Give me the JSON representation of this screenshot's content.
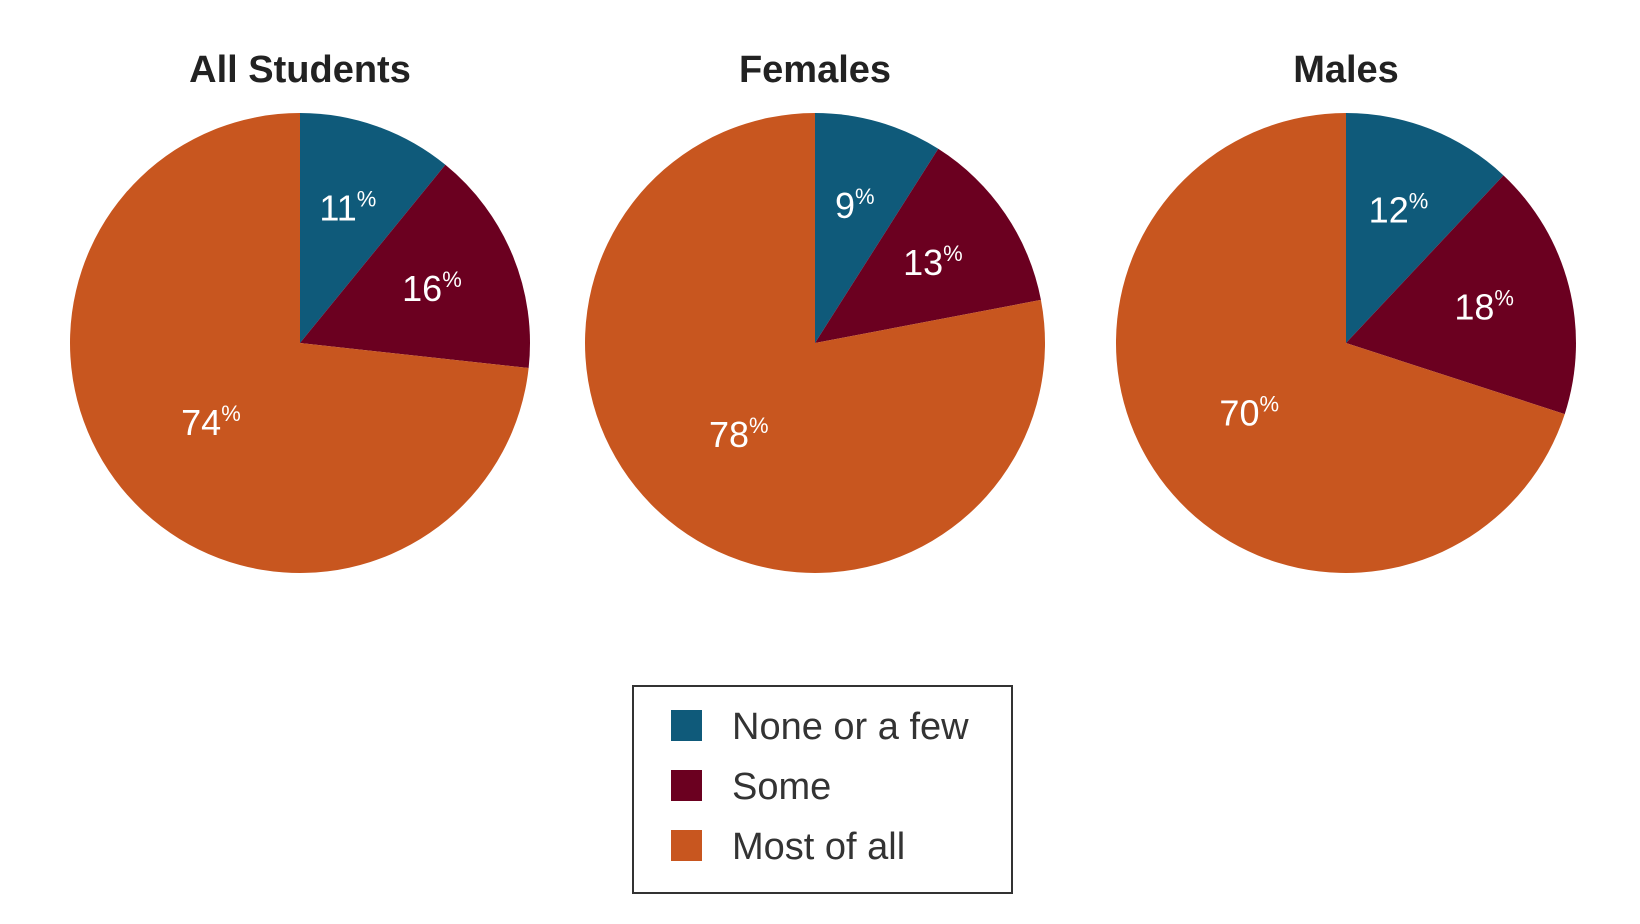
{
  "chart_data": {
    "type": "pie",
    "colors": {
      "None or a few": "#0f5a7a",
      "Some": "#6b0020",
      "Most of all": "#c8561f"
    },
    "legend": {
      "placement": "bottom-center",
      "entries": [
        "None or a few",
        "Some",
        "Most of all"
      ]
    },
    "pies": [
      {
        "title": "All Students",
        "slices": [
          {
            "label": "None or a few",
            "value": 11
          },
          {
            "label": "Some",
            "value": 16
          },
          {
            "label": "Most of all",
            "value": 74
          }
        ]
      },
      {
        "title": "Females",
        "slices": [
          {
            "label": "None or a few",
            "value": 9
          },
          {
            "label": "Some",
            "value": 13
          },
          {
            "label": "Most of all",
            "value": 78
          }
        ]
      },
      {
        "title": "Males",
        "slices": [
          {
            "label": "None or a few",
            "value": 12
          },
          {
            "label": "Some",
            "value": 18
          },
          {
            "label": "Most of all",
            "value": 70
          }
        ]
      }
    ]
  }
}
